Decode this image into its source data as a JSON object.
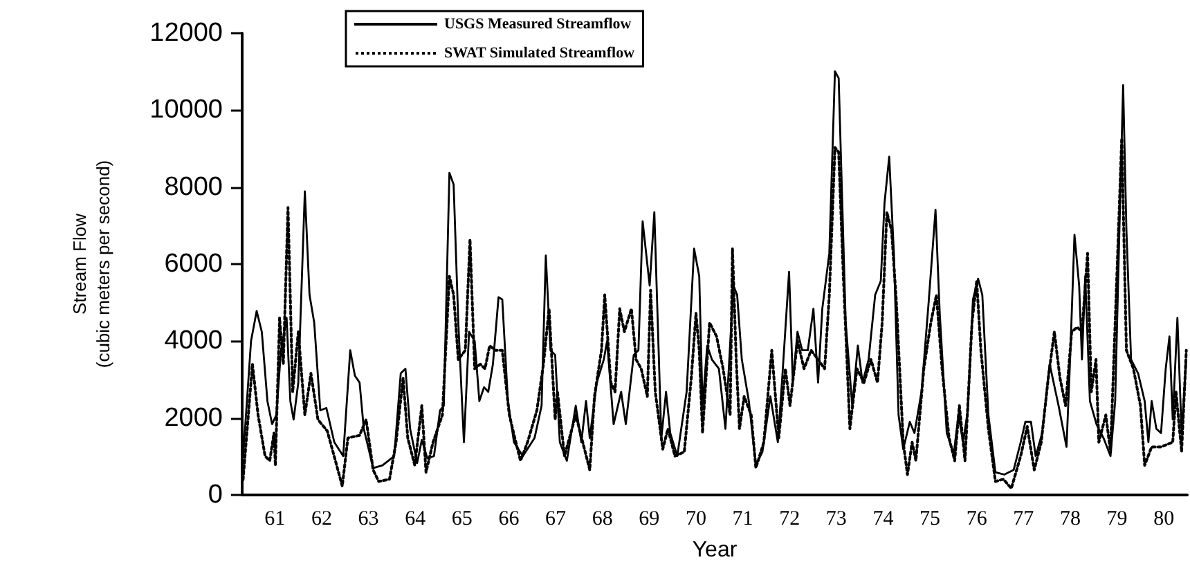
{
  "chart_data": {
    "type": "line",
    "xlabel": "Year",
    "ylabel": "Stream Flow\n(cubic meters per second)",
    "xlim": [
      60.3,
      80.5
    ],
    "xticks": [
      61,
      62,
      63,
      64,
      65,
      66,
      67,
      68,
      69,
      70,
      71,
      72,
      73,
      74,
      75,
      76,
      77,
      78,
      79,
      80
    ],
    "ylim": [
      0,
      12000
    ],
    "yticks": [
      0,
      2000,
      4000,
      6000,
      8000,
      10000,
      12000
    ],
    "grid": false,
    "legend": "top left",
    "marker": "none",
    "series": [
      {
        "name": "USGS Measured Streamflow",
        "color": "#000000",
        "line_style": "solid",
        "x": [
          60.32,
          60.49,
          60.61,
          60.72,
          60.84,
          60.94,
          61.03,
          61.13,
          61.25,
          61.33,
          61.4,
          61.5,
          61.64,
          61.74,
          61.84,
          61.97,
          62.1,
          62.27,
          62.46,
          62.61,
          62.71,
          62.81,
          62.9,
          63.1,
          63.3,
          63.55,
          63.69,
          63.79,
          63.89,
          64.04,
          64.14,
          64.26,
          64.4,
          64.53,
          64.61,
          64.73,
          64.82,
          64.92,
          65.04,
          65.15,
          65.27,
          65.37,
          65.47,
          65.56,
          65.66,
          65.78,
          65.86,
          65.98,
          66.11,
          66.3,
          66.55,
          66.7,
          66.79,
          66.89,
          66.99,
          67.09,
          67.24,
          67.43,
          67.55,
          67.65,
          67.73,
          67.88,
          68.03,
          68.1,
          68.24,
          68.4,
          68.5,
          68.67,
          68.77,
          68.86,
          69.01,
          69.11,
          69.26,
          69.36,
          69.45,
          69.6,
          69.8,
          69.96,
          70.07,
          70.14,
          70.24,
          70.34,
          70.49,
          70.63,
          70.8,
          70.88,
          70.98,
          71.13,
          71.28,
          71.42,
          71.59,
          71.75,
          71.85,
          71.99,
          72.07,
          72.17,
          72.27,
          72.39,
          72.51,
          72.61,
          72.7,
          72.85,
          72.97,
          73.05,
          73.2,
          73.34,
          73.46,
          73.56,
          73.69,
          73.83,
          73.95,
          74.03,
          74.13,
          74.23,
          74.33,
          74.43,
          74.57,
          74.67,
          74.82,
          74.97,
          75.12,
          75.21,
          75.36,
          75.51,
          75.61,
          75.71,
          75.81,
          75.92,
          76.03,
          76.12,
          76.25,
          76.4,
          76.59,
          76.79,
          76.94,
          77.04,
          77.16,
          77.26,
          77.4,
          77.56,
          77.75,
          77.92,
          78.0,
          78.09,
          78.19,
          78.25,
          78.32,
          78.42,
          78.56,
          78.71,
          78.86,
          78.96,
          79.05,
          79.13,
          79.2,
          79.3,
          79.45,
          79.59,
          79.67,
          79.74,
          79.84,
          79.94,
          80.04,
          80.12,
          80.19,
          80.29,
          80.38,
          80.48
        ],
        "values": [
          970,
          4000,
          4780,
          4240,
          2440,
          1840,
          2080,
          3760,
          4600,
          2440,
          1960,
          2920,
          7890,
          5200,
          4480,
          2200,
          2260,
          1370,
          1010,
          3760,
          3100,
          2920,
          1720,
          700,
          770,
          1010,
          3160,
          3280,
          1720,
          830,
          1430,
          950,
          1010,
          2200,
          2320,
          8370,
          8070,
          4480,
          1370,
          4240,
          4000,
          2440,
          2800,
          2680,
          3400,
          5140,
          5080,
          2440,
          1370,
          1010,
          1480,
          2320,
          6220,
          3760,
          3640,
          1370,
          890,
          2320,
          1370,
          2440,
          1480,
          2920,
          3520,
          4000,
          1840,
          2680,
          1840,
          3640,
          3760,
          7110,
          5440,
          7350,
          1480,
          2680,
          1610,
          1010,
          2680,
          6400,
          5680,
          2320,
          3880,
          3520,
          3280,
          1720,
          5440,
          5200,
          3520,
          2440,
          770,
          1120,
          2560,
          1370,
          3160,
          5800,
          2920,
          4240,
          3760,
          3760,
          4840,
          2920,
          4840,
          6280,
          11010,
          10830,
          4480,
          2320,
          3880,
          2920,
          3520,
          5200,
          5560,
          7590,
          8790,
          6280,
          2080,
          1190,
          1900,
          1610,
          2680,
          4960,
          7410,
          4720,
          1610,
          1070,
          2080,
          1370,
          2200,
          5080,
          5620,
          5200,
          2080,
          590,
          530,
          650,
          1370,
          1900,
          1900,
          1010,
          1610,
          3400,
          2320,
          1250,
          3640,
          6760,
          5440,
          3520,
          5680,
          2440,
          1840,
          1480,
          1010,
          2440,
          6880,
          10650,
          6880,
          3520,
          3160,
          2440,
          1370,
          2440,
          1720,
          1610,
          3280,
          4120,
          1960,
          4600,
          1610,
          3520
        ]
      },
      {
        "name": "SWAT Simulated Streamflow",
        "color": "#000000",
        "line_style": "dotted",
        "x": [
          60.32,
          60.52,
          60.64,
          60.79,
          60.89,
          60.98,
          61.01,
          61.1,
          61.18,
          61.28,
          61.38,
          61.5,
          61.64,
          61.77,
          61.92,
          62.12,
          62.32,
          62.44,
          62.56,
          62.81,
          62.95,
          63.1,
          63.22,
          63.45,
          63.59,
          63.74,
          63.84,
          63.99,
          64.14,
          64.23,
          64.38,
          64.58,
          64.73,
          64.82,
          64.92,
          65.07,
          65.17,
          65.27,
          65.39,
          65.49,
          65.59,
          65.71,
          65.86,
          66.01,
          66.15,
          66.25,
          66.4,
          66.6,
          66.74,
          66.86,
          66.99,
          67.04,
          67.19,
          67.43,
          67.58,
          67.73,
          67.83,
          67.98,
          68.05,
          68.18,
          68.27,
          68.37,
          68.47,
          68.62,
          68.72,
          68.83,
          68.96,
          69.03,
          69.13,
          69.29,
          69.4,
          69.55,
          69.75,
          69.9,
          70.0,
          70.07,
          70.14,
          70.29,
          70.44,
          70.58,
          70.73,
          70.78,
          70.86,
          70.93,
          71.03,
          71.18,
          71.28,
          71.45,
          71.62,
          71.77,
          71.91,
          72.01,
          72.17,
          72.31,
          72.46,
          72.61,
          72.75,
          72.85,
          72.97,
          73.05,
          73.15,
          73.29,
          73.44,
          73.59,
          73.74,
          73.88,
          73.98,
          74.08,
          74.18,
          74.28,
          74.43,
          74.52,
          74.62,
          74.7,
          74.87,
          75.02,
          75.14,
          75.26,
          75.41,
          75.53,
          75.63,
          75.75,
          75.9,
          76.0,
          76.09,
          76.25,
          76.4,
          76.57,
          76.74,
          76.94,
          77.08,
          77.23,
          77.38,
          77.53,
          77.66,
          77.78,
          77.9,
          78.03,
          78.15,
          78.25,
          78.37,
          78.45,
          78.55,
          78.61,
          78.76,
          78.86,
          79.01,
          79.1,
          79.2,
          79.35,
          79.5,
          79.59,
          79.74,
          79.94,
          80.19,
          80.26,
          80.38,
          80.48
        ],
        "values": [
          400,
          3400,
          2080,
          1010,
          890,
          1610,
          770,
          4600,
          3400,
          7470,
          2680,
          4240,
          2080,
          3160,
          1960,
          1660,
          770,
          230,
          1480,
          1550,
          1960,
          650,
          350,
          410,
          1370,
          3040,
          1480,
          770,
          2320,
          590,
          1370,
          2080,
          5680,
          5200,
          3520,
          3760,
          6640,
          3280,
          3400,
          3280,
          3880,
          3760,
          3760,
          2080,
          1370,
          890,
          1370,
          2200,
          3400,
          4840,
          1960,
          2680,
          1010,
          2080,
          1370,
          650,
          2560,
          3760,
          5200,
          2920,
          2680,
          4840,
          4240,
          4840,
          3520,
          3280,
          2560,
          5320,
          2680,
          1190,
          1720,
          1010,
          1120,
          3040,
          4720,
          3760,
          1610,
          4480,
          4120,
          3280,
          2080,
          6400,
          3520,
          1720,
          2560,
          2080,
          700,
          1370,
          3760,
          1480,
          3280,
          2320,
          4000,
          3280,
          3760,
          3520,
          3280,
          5200,
          9030,
          8910,
          5680,
          1720,
          3280,
          2920,
          3520,
          2920,
          4480,
          7350,
          6880,
          5080,
          1370,
          530,
          1370,
          890,
          3280,
          4480,
          5200,
          3280,
          1480,
          890,
          2320,
          890,
          4480,
          5560,
          3760,
          1720,
          350,
          410,
          170,
          1010,
          1780,
          650,
          1370,
          3040,
          4240,
          3040,
          2320,
          4240,
          4360,
          4240,
          6280,
          2680,
          3520,
          1370,
          2080,
          1120,
          6160,
          9270,
          3760,
          3280,
          2320,
          770,
          1250,
          1250,
          1370,
          2680,
          1120,
          3760
        ]
      }
    ]
  }
}
